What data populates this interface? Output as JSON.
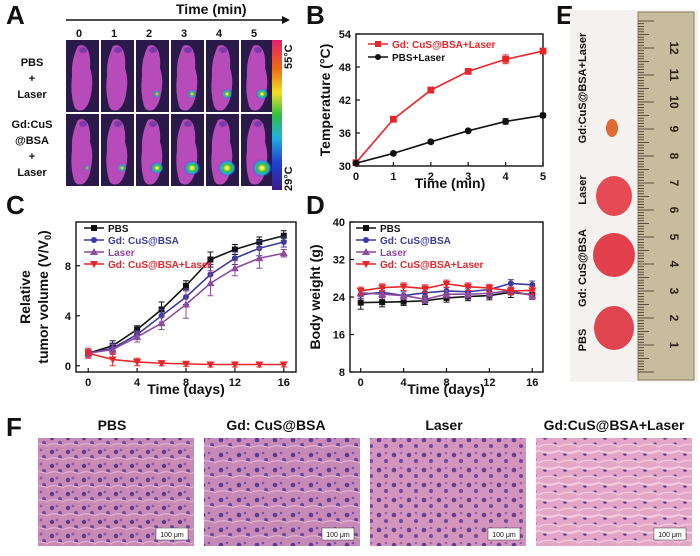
{
  "panel_letters": [
    "A",
    "B",
    "C",
    "D",
    "E",
    "F"
  ],
  "panel_a": {
    "time_label": "Time (min)",
    "times": [
      "0",
      "1",
      "2",
      "3",
      "4",
      "5"
    ],
    "rows": [
      {
        "label": [
          "PBS",
          "+",
          "Laser"
        ],
        "hot": [
          0,
          0,
          0.15,
          0.25,
          0.35,
          0.45
        ]
      },
      {
        "label": [
          "Gd:CuS",
          "@BSA",
          "+",
          "Laser"
        ],
        "hot": [
          0.05,
          0.25,
          0.5,
          0.75,
          0.9,
          1.0
        ]
      }
    ],
    "colorbar_max": "55°C",
    "colorbar_min": "29°C"
  },
  "panel_e": {
    "labels": [
      "Gd:CuS@BSA+Laser",
      "Laser",
      "Gd: CuS@BSA",
      "PBS"
    ],
    "ruler_numbers": [
      "1",
      "2",
      "3",
      "4",
      "5",
      "6",
      "7",
      "8",
      "9",
      "10",
      "11",
      "12"
    ]
  },
  "panel_f": {
    "labels": [
      "PBS",
      "Gd: CuS@BSA",
      "Laser",
      "Gd:CuS@BSA+Laser"
    ],
    "scale_bar": "100 μm"
  },
  "chart_data": [
    {
      "id": "B",
      "type": "line",
      "xlabel": "Time (min)",
      "ylabel": "Temperature (°C)",
      "x": [
        0,
        1,
        2,
        3,
        4,
        5
      ],
      "xlim": [
        0,
        5
      ],
      "ylim": [
        30,
        54
      ],
      "xticks": [
        0,
        1,
        2,
        3,
        4,
        5
      ],
      "yticks": [
        30,
        36,
        42,
        48,
        54
      ],
      "legend_position": "top-left",
      "series": [
        {
          "name": "Gd: CuS@BSA+Laser",
          "color": "#e8262a",
          "marker": "square",
          "values": [
            30.6,
            38.5,
            43.8,
            47.2,
            49.4,
            50.9
          ],
          "err": [
            0.2,
            0.3,
            0.5,
            0.3,
            0.8,
            0.4
          ]
        },
        {
          "name": "PBS+Laser",
          "color": "#111111",
          "marker": "circle",
          "values": [
            30.5,
            32.3,
            34.4,
            36.4,
            38.1,
            39.2
          ],
          "err": [
            0.2,
            0.3,
            0.3,
            0.3,
            0.5,
            0.4
          ]
        }
      ]
    },
    {
      "id": "C",
      "type": "line",
      "xlabel": "Time (days)",
      "ylabel": "Relative tumor volume (V/V0)",
      "ylabel_lines": [
        "Relative",
        "tumor volume (V/V"
      ],
      "ylabel_sub": "0",
      "x": [
        0,
        2,
        4,
        6,
        8,
        10,
        12,
        14,
        16
      ],
      "xlim": [
        -1,
        17
      ],
      "ylim": [
        -0.5,
        11.5
      ],
      "xticks": [
        0,
        4,
        8,
        12,
        16
      ],
      "yticks": [
        0,
        4,
        8
      ],
      "legend_position": "top-left",
      "series": [
        {
          "name": "PBS",
          "color": "#111111",
          "marker": "square",
          "values": [
            1.0,
            1.6,
            2.9,
            4.5,
            6.4,
            8.5,
            9.3,
            9.9,
            10.4
          ],
          "err": [
            0.3,
            0.4,
            0.3,
            0.6,
            0.4,
            0.6,
            0.4,
            0.4,
            0.4
          ]
        },
        {
          "name": "Gd: CuS@BSA",
          "color": "#3b3b9a",
          "marker": "circle",
          "values": [
            1.0,
            1.4,
            2.5,
            4.0,
            5.5,
            7.3,
            8.6,
            9.4,
            9.9
          ],
          "err": [
            0.3,
            0.4,
            0.3,
            0.5,
            0.6,
            0.8,
            0.5,
            0.6,
            0.4
          ]
        },
        {
          "name": "Laser",
          "color": "#8e4a9e",
          "marker": "triangle-up",
          "values": [
            1.0,
            1.3,
            2.3,
            3.4,
            4.9,
            6.6,
            7.8,
            8.6,
            9.0
          ],
          "err": [
            0.3,
            0.4,
            0.4,
            0.5,
            1.1,
            1.0,
            0.6,
            0.8,
            0.3
          ]
        },
        {
          "name": "Gd: CuS@BSA+Laser",
          "color": "#e8262a",
          "marker": "triangle-down",
          "values": [
            1.0,
            0.5,
            0.3,
            0.2,
            0.15,
            0.1,
            0.1,
            0.1,
            0.1
          ],
          "err": [
            0.4,
            0.5,
            0.3,
            0.2,
            0.2,
            0.2,
            0.2,
            0.2,
            0.2
          ]
        }
      ]
    },
    {
      "id": "D",
      "type": "line",
      "xlabel": "Time (days)",
      "ylabel": "Body weight (g)",
      "x": [
        0,
        2,
        4,
        6,
        8,
        10,
        12,
        14,
        16
      ],
      "xlim": [
        -1,
        17
      ],
      "ylim": [
        8,
        40
      ],
      "xticks": [
        0,
        4,
        8,
        12,
        16
      ],
      "yticks": [
        8,
        16,
        24,
        32,
        40
      ],
      "legend_position": "top-left",
      "series": [
        {
          "name": "PBS",
          "color": "#111111",
          "marker": "square",
          "values": [
            22.8,
            22.9,
            23.0,
            23.2,
            23.8,
            24.1,
            24.3,
            25.0,
            24.5
          ],
          "err": [
            1.4,
            1.0,
            0.8,
            0.8,
            0.9,
            0.9,
            0.9,
            1.1,
            1.0
          ]
        },
        {
          "name": "Gd: CuS@BSA",
          "color": "#3b3b9a",
          "marker": "circle",
          "values": [
            24.5,
            25.0,
            24.3,
            24.9,
            25.3,
            25.1,
            25.6,
            26.9,
            26.6
          ],
          "err": [
            0.8,
            0.8,
            0.8,
            0.8,
            0.8,
            0.8,
            0.8,
            0.8,
            0.8
          ]
        },
        {
          "name": "Laser",
          "color": "#8e4a9e",
          "marker": "triangle-up",
          "values": [
            24.9,
            24.6,
            24.3,
            23.5,
            24.6,
            24.6,
            24.8,
            25.3,
            24.3
          ],
          "err": [
            0.8,
            0.8,
            0.8,
            0.8,
            0.8,
            0.8,
            0.8,
            0.8,
            0.8
          ]
        },
        {
          "name": "Gd: CuS@BSA+Laser",
          "color": "#e8262a",
          "marker": "triangle-down",
          "values": [
            25.3,
            26.0,
            26.2,
            25.8,
            26.8,
            26.2,
            25.9,
            25.3,
            25.4
          ],
          "err": [
            0.8,
            0.8,
            0.8,
            0.8,
            0.8,
            0.8,
            0.8,
            0.8,
            0.8
          ]
        }
      ]
    }
  ]
}
